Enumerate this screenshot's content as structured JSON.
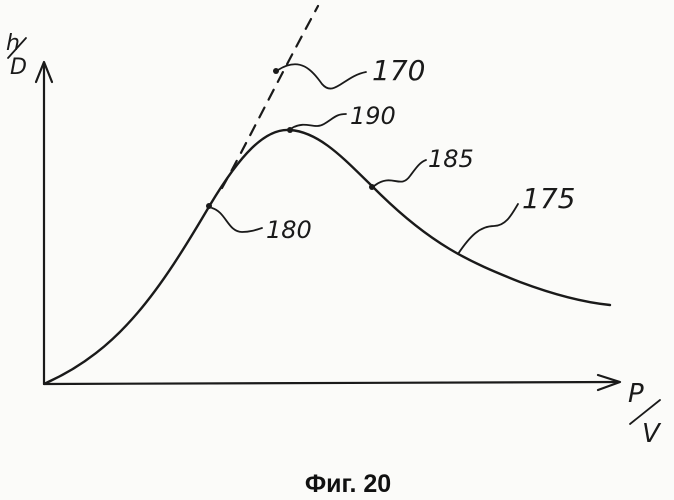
{
  "axes": {
    "y_label_top": "h",
    "y_label_bottom": "D",
    "x_label_top": "P",
    "x_label_bottom": "V"
  },
  "reference_numerals": {
    "dashed_curve": "170",
    "solid_curve": "175",
    "point_rising": "180",
    "point_falling": "185",
    "peak": "190"
  },
  "caption": "Фиг. 20"
}
